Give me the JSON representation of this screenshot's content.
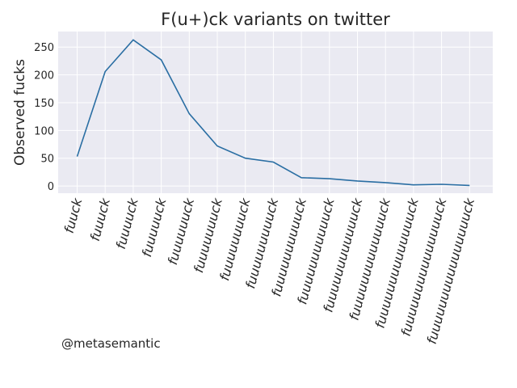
{
  "chart_data": {
    "type": "line",
    "title": "F(u+)ck variants on twitter",
    "xlabel": "",
    "ylabel": "Observed fucks",
    "categories": [
      "fuuck",
      "fuuuck",
      "fuuuuck",
      "fuuuuuck",
      "fuuuuuuck",
      "fuuuuuuuck",
      "fuuuuuuuuck",
      "fuuuuuuuuuck",
      "fuuuuuuuuuuck",
      "fuuuuuuuuuuuck",
      "fuuuuuuuuuuuuck",
      "fuuuuuuuuuuuuuck",
      "fuuuuuuuuuuuuuuck",
      "fuuuuuuuuuuuuuuuck",
      "fuuuuuuuuuuuuuuuuck"
    ],
    "values": [
      53,
      206,
      263,
      227,
      130,
      72,
      50,
      43,
      15,
      13,
      9,
      6,
      2,
      3,
      1
    ],
    "yticks": [
      0,
      50,
      100,
      150,
      200,
      250
    ],
    "ylim": [
      -13,
      278
    ],
    "grid": true,
    "line_color": "#2a6ea3",
    "background_color": "#eaeaf2"
  },
  "credit": "@metasemantic"
}
